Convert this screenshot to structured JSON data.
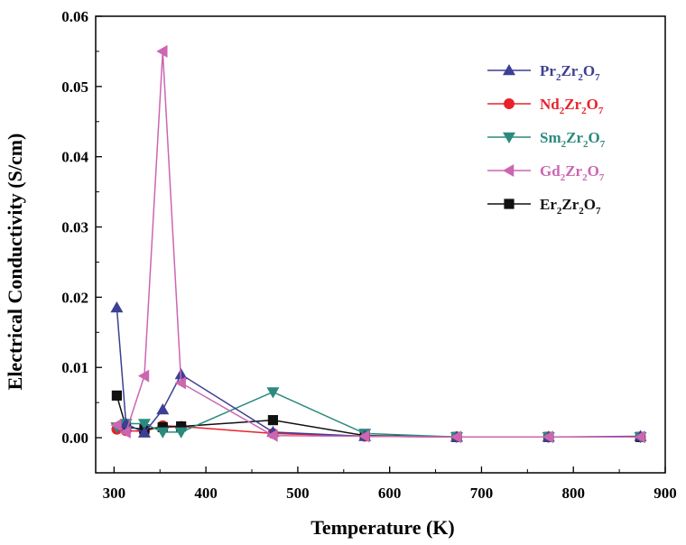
{
  "chart_data": {
    "type": "line",
    "xlabel": "Temperature (K)",
    "ylabel": "Electrical Conductivity (S/cm)",
    "xlim": [
      280,
      900
    ],
    "ylim": [
      -0.005,
      0.06
    ],
    "x_ticks": [
      "300",
      "400",
      "500",
      "600",
      "700",
      "800",
      "900"
    ],
    "y_ticks": [
      "0.00",
      "0.01",
      "0.02",
      "0.03",
      "0.04",
      "0.05",
      "0.06"
    ],
    "legend_position": "top-right",
    "grid": false,
    "series": [
      {
        "name": "Pr2Zr2O7",
        "label": {
          "parts": [
            [
              "Pr",
              ""
            ],
            [
              "2",
              "sub"
            ],
            [
              "Zr",
              ""
            ],
            [
              "2",
              "sub"
            ],
            [
              "O",
              ""
            ],
            [
              "7",
              "sub"
            ]
          ]
        },
        "color": "#3d3f94",
        "marker": "triangle-up",
        "x": [
          303,
          313,
          333,
          353,
          373,
          473,
          573,
          673,
          773,
          873
        ],
        "y": [
          0.0185,
          0.002,
          0.0007,
          0.004,
          0.009,
          0.0008,
          0.0002,
          0.0001,
          0.0001,
          0.0002
        ]
      },
      {
        "name": "Nd2Zr2O7",
        "label": {
          "parts": [
            [
              "Nd",
              ""
            ],
            [
              "2",
              "sub"
            ],
            [
              "Zr",
              ""
            ],
            [
              "2",
              "sub"
            ],
            [
              "O",
              ""
            ],
            [
              "7",
              "sub"
            ]
          ]
        },
        "color": "#e8222a",
        "marker": "circle",
        "x": [
          303,
          313,
          333,
          353,
          373,
          473,
          573,
          673,
          773,
          873
        ],
        "y": [
          0.0012,
          0.001,
          0.0009,
          0.0017,
          0.0016,
          0.0006,
          0.0002,
          0.0001,
          0.0001,
          0.0001
        ]
      },
      {
        "name": "Sm2Zr2O7",
        "label": {
          "parts": [
            [
              "Sm",
              ""
            ],
            [
              "2",
              "sub"
            ],
            [
              "Zr",
              ""
            ],
            [
              "2",
              "sub"
            ],
            [
              "O",
              ""
            ],
            [
              "7",
              "sub"
            ]
          ]
        },
        "color": "#2a8a7e",
        "marker": "triangle-down",
        "x": [
          303,
          313,
          333,
          353,
          373,
          473,
          573,
          673,
          773,
          873
        ],
        "y": [
          0.0015,
          0.002,
          0.002,
          0.0008,
          0.0008,
          0.0065,
          0.0006,
          0.0001,
          0.0001,
          0.0001
        ]
      },
      {
        "name": "Gd2Zr2O7",
        "label": {
          "parts": [
            [
              "Gd",
              ""
            ],
            [
              "2",
              "sub"
            ],
            [
              "Zr",
              ""
            ],
            [
              "2",
              "sub"
            ],
            [
              "O",
              ""
            ],
            [
              "7",
              "sub"
            ]
          ]
        },
        "color": "#cc66b0",
        "marker": "triangle-left",
        "x": [
          303,
          313,
          333,
          353,
          373,
          473,
          573,
          673,
          773,
          873
        ],
        "y": [
          0.0018,
          0.0008,
          0.0088,
          0.055,
          0.0078,
          0.0003,
          0.0002,
          0.0001,
          0.0001,
          0.0001
        ]
      },
      {
        "name": "Er2Zr2O7",
        "label": {
          "parts": [
            [
              "Er",
              ""
            ],
            [
              "2",
              "sub"
            ],
            [
              "Zr",
              ""
            ],
            [
              "2",
              "sub"
            ],
            [
              "O",
              ""
            ],
            [
              "7",
              "sub"
            ]
          ]
        },
        "color": "#111111",
        "marker": "square",
        "x": [
          303,
          313,
          333,
          353,
          373,
          473,
          573,
          673,
          773,
          873
        ],
        "y": [
          0.006,
          0.0015,
          0.0012,
          0.0015,
          0.0016,
          0.0025,
          0.0003,
          0.0001,
          0.0001,
          0.0001
        ]
      }
    ]
  }
}
